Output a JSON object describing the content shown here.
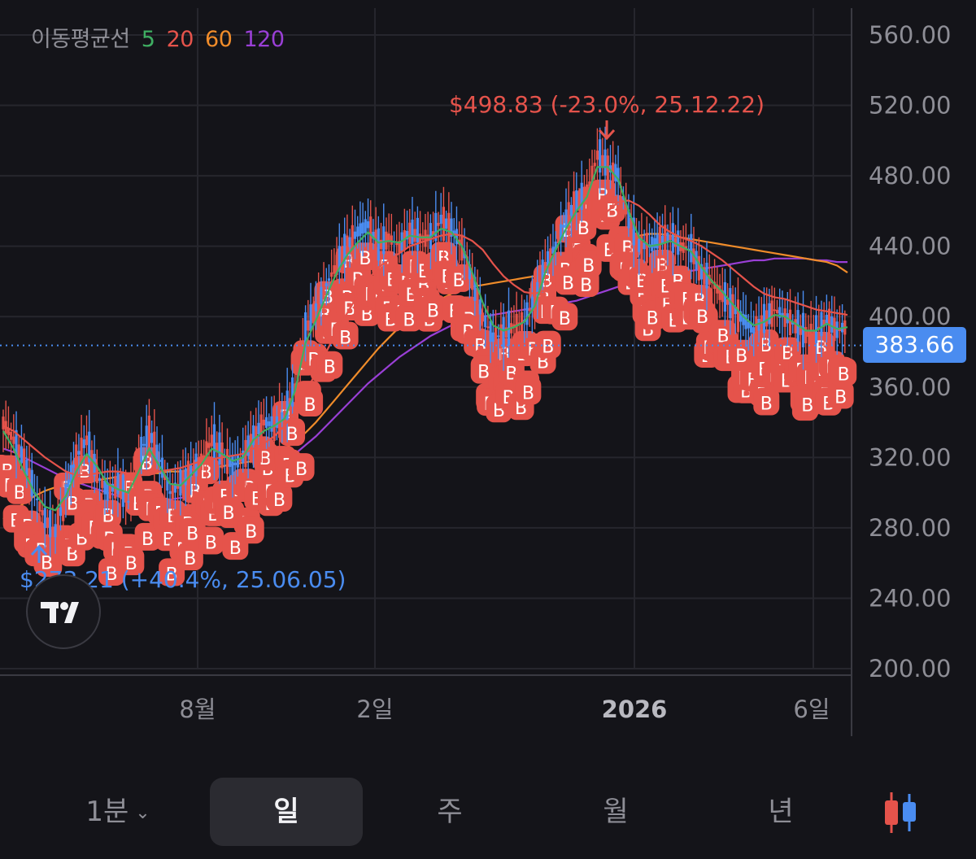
{
  "legend": {
    "label": "이동평균선",
    "periods": [
      {
        "value": "5",
        "color": "#3fae62"
      },
      {
        "value": "20",
        "color": "#e5534b"
      },
      {
        "value": "60",
        "color": "#f08c2a"
      },
      {
        "value": "120",
        "color": "#9a3fd6"
      }
    ]
  },
  "price_badge": "383.66",
  "timeframes": {
    "minute": "1분",
    "day": "일",
    "week": "주",
    "month": "월",
    "year": "년",
    "active": "day"
  },
  "chart_data": {
    "type": "candlestick",
    "y_range": [
      200,
      560
    ],
    "y_ticks": [
      "560.00",
      "520.00",
      "480.00",
      "440.00",
      "400.00",
      "360.00",
      "320.00",
      "280.00",
      "240.00",
      "200.00"
    ],
    "x_labels": [
      "8월",
      "2일",
      "2026",
      "6일"
    ],
    "current_price": 383.66,
    "annotations": {
      "high": {
        "text": "$498.83 (-23.0%, 25.12.22)",
        "value": 498.83,
        "color": "#e5534b"
      },
      "low": {
        "text": "$273.21 (+40.4%, 25.06.05)",
        "value": 273.21,
        "color": "#4a8cf0"
      }
    },
    "buy_marker_label": "B",
    "colors": {
      "up": "#e5534b",
      "down": "#4a8cf0",
      "marker": "#e5534b"
    },
    "price_series": [
      340,
      330,
      318,
      300,
      285,
      278,
      300,
      320,
      330,
      310,
      300,
      305,
      295,
      320,
      335,
      318,
      300,
      305,
      312,
      318,
      330,
      322,
      315,
      320,
      332,
      340,
      338,
      345,
      360,
      392,
      405,
      418,
      430,
      440,
      448,
      452,
      440,
      445,
      440,
      448,
      445,
      445,
      455,
      450,
      440,
      420,
      400,
      388,
      390,
      395,
      398,
      410,
      430,
      440,
      455,
      465,
      470,
      492,
      485,
      480,
      455,
      440,
      440,
      443,
      445,
      440,
      438,
      425,
      420,
      412,
      405,
      398,
      392,
      398,
      404,
      400,
      395,
      390,
      392,
      398,
      392,
      395
    ],
    "moving_averages": [
      {
        "period": "5",
        "color": "#3fae62",
        "values": [
          335,
          325,
          312,
          300,
          292,
          290,
          298,
          312,
          322,
          315,
          305,
          302,
          300,
          312,
          325,
          315,
          305,
          304,
          310,
          316,
          325,
          322,
          318,
          320,
          330,
          335,
          338,
          342,
          358,
          385,
          398,
          412,
          425,
          435,
          442,
          448,
          442,
          443,
          442,
          446,
          445,
          445,
          450,
          448,
          440,
          425,
          408,
          395,
          392,
          394,
          397,
          406,
          425,
          438,
          450,
          460,
          468,
          485,
          485,
          478,
          460,
          445,
          440,
          441,
          443,
          440,
          437,
          428,
          420,
          414,
          407,
          400,
          395,
          397,
          401,
          400,
          396,
          392,
          392,
          396,
          393,
          394
        ]
      },
      {
        "period": "20",
        "color": "#e5534b",
        "values": [
          338,
          335,
          330,
          325,
          320,
          316,
          312,
          310,
          310,
          311,
          312,
          312,
          311,
          310,
          310,
          312,
          313,
          314,
          316,
          318,
          319,
          320,
          321,
          322,
          325,
          328,
          332,
          338,
          346,
          357,
          368,
          380,
          392,
          402,
          412,
          421,
          428,
          432,
          436,
          440,
          442,
          444,
          446,
          447,
          446,
          443,
          438,
          430,
          423,
          418,
          414,
          413,
          415,
          420,
          426,
          434,
          442,
          452,
          460,
          465,
          466,
          463,
          458,
          452,
          448,
          445,
          443,
          440,
          436,
          432,
          427,
          422,
          417,
          413,
          411,
          410,
          408,
          406,
          404,
          403,
          402,
          401
        ]
      },
      {
        "period": "60",
        "color": "#f08c2a",
        "values": [
          285,
          290,
          294,
          298,
          301,
          303,
          304,
          305,
          306,
          307,
          308,
          309,
          310,
          310,
          311,
          311,
          312,
          312,
          313,
          313,
          314,
          315,
          316,
          317,
          318,
          320,
          322,
          325,
          329,
          334,
          340,
          347,
          354,
          361,
          368,
          375,
          382,
          388,
          394,
          399,
          403,
          407,
          410,
          413,
          415,
          417,
          418,
          419,
          420,
          421,
          422,
          423,
          425,
          427,
          429,
          432,
          435,
          438,
          441,
          443,
          445,
          446,
          447,
          447,
          446,
          445,
          444,
          443,
          442,
          441,
          440,
          439,
          438,
          437,
          436,
          435,
          434,
          433,
          432,
          431,
          429,
          425
        ]
      },
      {
        "period": "120",
        "color": "#9a3fd6",
        "values": [
          325,
          323,
          320,
          317,
          314,
          311,
          308,
          306,
          304,
          302,
          300,
          298,
          297,
          296,
          296,
          296,
          296,
          297,
          298,
          299,
          300,
          302,
          304,
          306,
          308,
          311,
          314,
          318,
          322,
          327,
          332,
          338,
          344,
          350,
          356,
          362,
          367,
          372,
          377,
          381,
          385,
          389,
          392,
          395,
          397,
          399,
          400,
          401,
          402,
          403,
          404,
          405,
          406,
          407,
          408,
          409,
          411,
          413,
          415,
          417,
          419,
          421,
          422,
          423,
          424,
          425,
          426,
          427,
          428,
          429,
          430,
          431,
          432,
          432,
          433,
          433,
          433,
          433,
          432,
          432,
          431,
          431
        ]
      }
    ]
  }
}
